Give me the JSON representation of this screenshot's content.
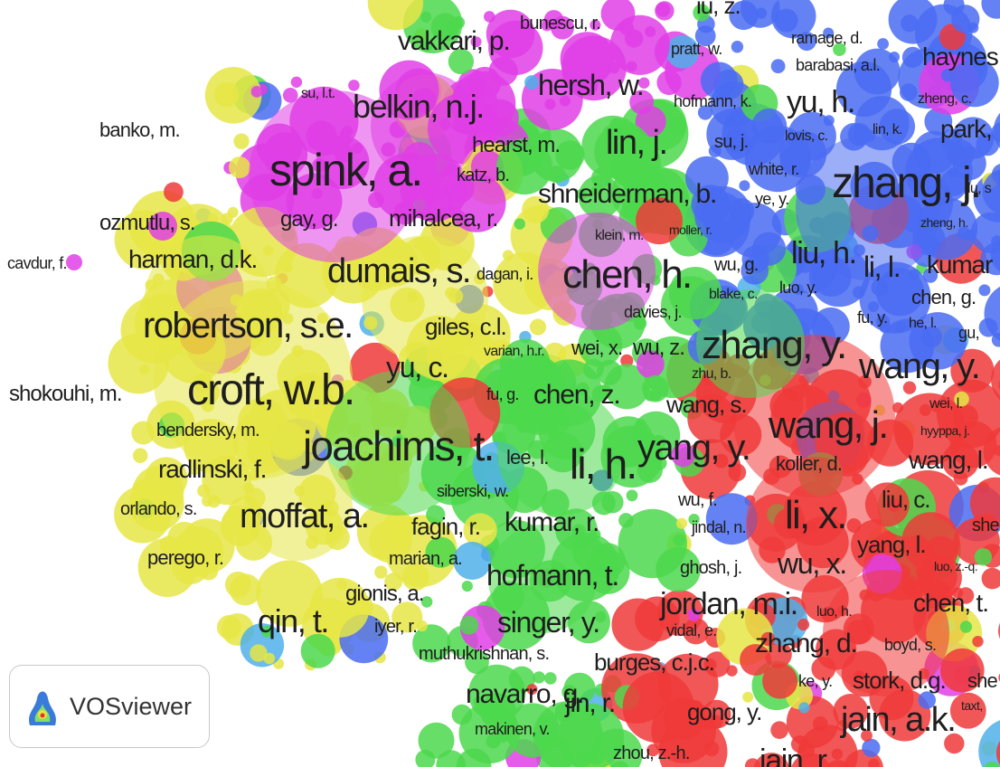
{
  "nodes": [
    {
      "label": "iu, z."
    },
    {
      "label": "bunescu, r."
    },
    {
      "label": "vakkari, p."
    },
    {
      "label": "pratt, w."
    },
    {
      "label": "ramage, d."
    },
    {
      "label": "haynes"
    },
    {
      "label": "barabasi, a.l."
    },
    {
      "label": "hersh, w."
    },
    {
      "label": "su, l.t."
    },
    {
      "label": "belkin, n.j."
    },
    {
      "label": "hofmann, k."
    },
    {
      "label": "yu, h."
    },
    {
      "label": "zheng, c."
    },
    {
      "label": "banko, m."
    },
    {
      "label": "hearst, m."
    },
    {
      "label": "lin, j."
    },
    {
      "label": "su, j."
    },
    {
      "label": "lovis, c."
    },
    {
      "label": "lin, k."
    },
    {
      "label": "park,"
    },
    {
      "label": "spink, a."
    },
    {
      "label": "katz, b."
    },
    {
      "label": "white, r."
    },
    {
      "label": "zhang, j."
    },
    {
      "label": "lu, s"
    },
    {
      "label": "shneiderman, b."
    },
    {
      "label": "ye, y."
    },
    {
      "label": "ozmutlu, s."
    },
    {
      "label": "gay, g."
    },
    {
      "label": "mihalcea, r."
    },
    {
      "label": "klein, m."
    },
    {
      "label": "moller, r."
    },
    {
      "label": "zheng, h."
    },
    {
      "label": "cavdur, f."
    },
    {
      "label": "harman, d.k."
    },
    {
      "label": "dumais, s."
    },
    {
      "label": "dagan, i."
    },
    {
      "label": "chen, h."
    },
    {
      "label": "wu, g."
    },
    {
      "label": "liu, h."
    },
    {
      "label": "li, l."
    },
    {
      "label": "kumar"
    },
    {
      "label": "blake, c."
    },
    {
      "label": "luo, y."
    },
    {
      "label": "chen, g."
    },
    {
      "label": "davies, j."
    },
    {
      "label": "robertson, s.e."
    },
    {
      "label": "giles, c.l."
    },
    {
      "label": "fu, y."
    },
    {
      "label": "he, l."
    },
    {
      "label": "gu,"
    },
    {
      "label": "wei, x."
    },
    {
      "label": "wu, z."
    },
    {
      "label": "zhang, y."
    },
    {
      "label": "varian, h.r."
    },
    {
      "label": "wang, y."
    },
    {
      "label": "croft, w.b."
    },
    {
      "label": "yu, c."
    },
    {
      "label": "shokouhi, m."
    },
    {
      "label": "zhu, b."
    },
    {
      "label": "fu, g."
    },
    {
      "label": "chen, z."
    },
    {
      "label": "wang, s."
    },
    {
      "label": "wang, j."
    },
    {
      "label": "wei, l."
    },
    {
      "label": "bendersky, m."
    },
    {
      "label": "hyyppa, j."
    },
    {
      "label": "joachims, t."
    },
    {
      "label": "lee, l."
    },
    {
      "label": "li, h."
    },
    {
      "label": "yang, y."
    },
    {
      "label": "koller, d."
    },
    {
      "label": "wang, l."
    },
    {
      "label": "radlinski, f."
    },
    {
      "label": "siberski, w."
    },
    {
      "label": "orlando, s."
    },
    {
      "label": "moffat, a."
    },
    {
      "label": "wu, f."
    },
    {
      "label": "li, x."
    },
    {
      "label": "liu, c."
    },
    {
      "label": "fagin, r."
    },
    {
      "label": "kumar, r."
    },
    {
      "label": "jindal, n."
    },
    {
      "label": "she"
    },
    {
      "label": "perego, r."
    },
    {
      "label": "marian, a."
    },
    {
      "label": "hofmann, t."
    },
    {
      "label": "yang, l."
    },
    {
      "label": "wu, x."
    },
    {
      "label": "ghosh, j."
    },
    {
      "label": "luo, z.-q."
    },
    {
      "label": "gionis, a."
    },
    {
      "label": "jordan, m.i."
    },
    {
      "label": "luo, h."
    },
    {
      "label": "chen, t."
    },
    {
      "label": "qin, t."
    },
    {
      "label": "iyer, r."
    },
    {
      "label": "singer, y."
    },
    {
      "label": "vidal, e."
    },
    {
      "label": "zhang, d."
    },
    {
      "label": "boyd, s."
    },
    {
      "label": "muthukrishnan, s."
    },
    {
      "label": "burges, c.j.c."
    },
    {
      "label": "ke, y."
    },
    {
      "label": "stork, d.g."
    },
    {
      "label": "she"
    },
    {
      "label": "navarro, g."
    },
    {
      "label": "jin, r."
    },
    {
      "label": "gong, y."
    },
    {
      "label": "taxt,"
    },
    {
      "label": "jain, a.k."
    },
    {
      "label": "makinen, v."
    },
    {
      "label": "zhou, z.-h."
    },
    {
      "label": "jain, r."
    }
  ],
  "logo": {
    "text": "VOSviewer"
  }
}
